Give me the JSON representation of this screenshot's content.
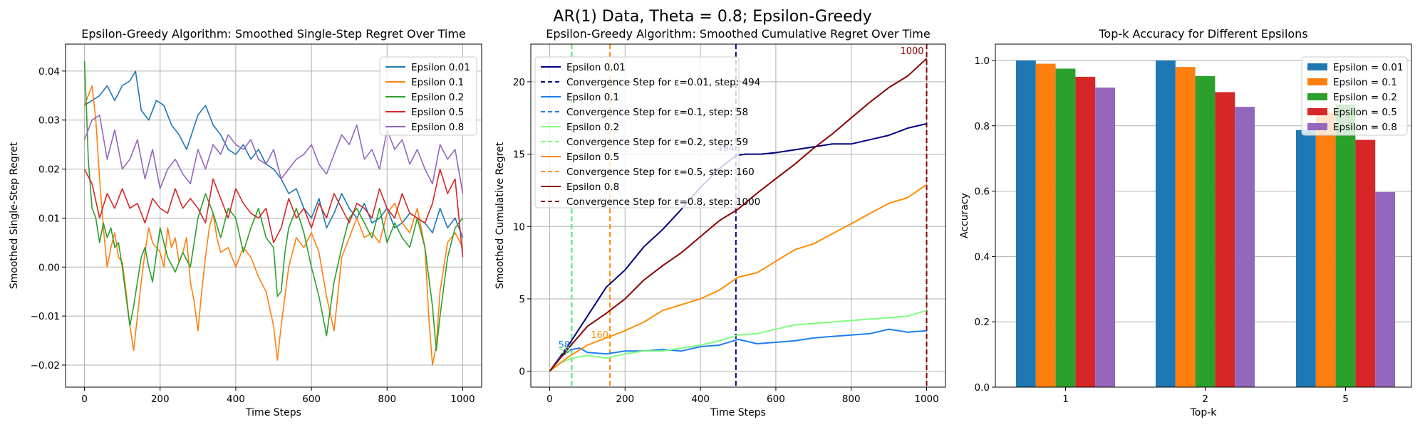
{
  "suptitle": "AR(1) Data, Theta = 0.8; Epsilon-Greedy",
  "chart_data": [
    {
      "type": "line",
      "title": "Epsilon-Greedy Algorithm: Smoothed Single-Step Regret Over Time",
      "xlabel": "Time Steps",
      "ylabel": "Smoothed Single-Step Regret",
      "xlim": [
        -50,
        1050
      ],
      "ylim": [
        -0.0245,
        0.0455
      ],
      "xticks": [
        0,
        200,
        400,
        600,
        800,
        1000
      ],
      "xtick_labels": [
        "0",
        "200",
        "400",
        "600",
        "800",
        "1000"
      ],
      "yticks": [
        -0.02,
        -0.01,
        0.0,
        0.01,
        0.02,
        0.03,
        0.04
      ],
      "ytick_labels": [
        "−0.02",
        "−0.01",
        "0.00",
        "0.01",
        "0.02",
        "0.03",
        "0.04"
      ],
      "grid": true,
      "legend_position": "upper right",
      "series": [
        {
          "name": "Epsilon 0.01",
          "color": "#1f77b4",
          "x": [
            0,
            20,
            40,
            60,
            80,
            100,
            120,
            135,
            150,
            170,
            190,
            210,
            230,
            250,
            270,
            300,
            320,
            340,
            360,
            380,
            400,
            420,
            440,
            460,
            480,
            500,
            520,
            540,
            560,
            580,
            600,
            620,
            640,
            660,
            680,
            700,
            720,
            740,
            760,
            780,
            800,
            820,
            840,
            860,
            880,
            900,
            920,
            940,
            960,
            980,
            1000
          ],
          "y": [
            0.033,
            0.034,
            0.035,
            0.037,
            0.034,
            0.037,
            0.038,
            0.04,
            0.032,
            0.03,
            0.034,
            0.033,
            0.029,
            0.027,
            0.024,
            0.031,
            0.033,
            0.029,
            0.027,
            0.024,
            0.023,
            0.025,
            0.022,
            0.024,
            0.021,
            0.02,
            0.018,
            0.015,
            0.016,
            0.012,
            0.01,
            0.014,
            0.008,
            0.011,
            0.015,
            0.012,
            0.01,
            0.013,
            0.009,
            0.01,
            0.012,
            0.008,
            0.009,
            0.011,
            0.01,
            0.009,
            0.007,
            0.012,
            0.008,
            0.01,
            0.006
          ]
        },
        {
          "name": "Epsilon 0.1",
          "color": "#ff7f0e",
          "x": [
            0,
            10,
            20,
            30,
            40,
            50,
            60,
            70,
            80,
            90,
            100,
            110,
            120,
            130,
            140,
            150,
            160,
            170,
            180,
            200,
            210,
            220,
            230,
            240,
            250,
            260,
            270,
            280,
            290,
            300,
            310,
            320,
            330,
            340,
            350,
            360,
            380,
            400,
            420,
            440,
            460,
            480,
            500,
            510,
            520,
            530,
            540,
            560,
            580,
            600,
            620,
            640,
            660,
            680,
            700,
            720,
            740,
            760,
            780,
            800,
            820,
            840,
            860,
            880,
            900,
            910,
            920,
            930,
            940,
            960,
            980,
            1000
          ],
          "y": [
            0.033,
            0.035,
            0.037,
            0.03,
            0.018,
            0.008,
            0.0,
            0.004,
            0.007,
            0.002,
            0.001,
            -0.005,
            -0.012,
            -0.017,
            -0.01,
            -0.003,
            0.003,
            0.008,
            0.005,
            0.003,
            0.0,
            0.008,
            0.004,
            0.006,
            0.001,
            0.003,
            0.006,
            -0.003,
            -0.007,
            -0.013,
            -0.005,
            0.002,
            0.008,
            0.011,
            0.006,
            0.003,
            0.004,
            0.0,
            0.004,
            0.002,
            -0.002,
            -0.005,
            -0.012,
            -0.019,
            -0.012,
            -0.006,
            0.0,
            0.006,
            0.004,
            0.007,
            0.003,
            -0.006,
            -0.013,
            0.002,
            0.006,
            0.01,
            0.006,
            0.007,
            0.005,
            0.011,
            0.013,
            0.009,
            0.007,
            0.012,
            0.004,
            -0.01,
            -0.02,
            -0.016,
            -0.005,
            0.005,
            0.007,
            0.004
          ]
        },
        {
          "name": "Epsilon 0.2",
          "color": "#2ca02c",
          "x": [
            0,
            5,
            10,
            20,
            30,
            40,
            50,
            60,
            70,
            80,
            90,
            100,
            110,
            120,
            130,
            140,
            150,
            160,
            170,
            180,
            200,
            220,
            240,
            260,
            280,
            300,
            320,
            340,
            360,
            380,
            400,
            420,
            440,
            460,
            480,
            500,
            510,
            520,
            530,
            540,
            560,
            580,
            600,
            620,
            640,
            660,
            680,
            700,
            720,
            740,
            760,
            780,
            800,
            820,
            840,
            860,
            880,
            900,
            920,
            930,
            940,
            960,
            980,
            1000
          ],
          "y": [
            0.042,
            0.033,
            0.022,
            0.012,
            0.01,
            0.005,
            0.009,
            0.006,
            0.008,
            0.004,
            0.005,
            0.0,
            -0.006,
            -0.012,
            -0.008,
            -0.003,
            0.002,
            0.004,
            0.0,
            -0.003,
            0.008,
            0.002,
            -0.001,
            0.003,
            0.0,
            0.01,
            0.015,
            0.011,
            0.006,
            0.012,
            0.01,
            0.003,
            0.008,
            0.012,
            0.006,
            0.004,
            -0.006,
            -0.005,
            0.003,
            0.008,
            0.012,
            0.007,
            0.0,
            -0.006,
            -0.014,
            -0.003,
            0.004,
            0.01,
            0.012,
            0.009,
            0.006,
            0.012,
            0.005,
            0.009,
            0.006,
            0.004,
            0.01,
            0.004,
            -0.008,
            -0.017,
            -0.01,
            0.002,
            0.008,
            0.01
          ]
        },
        {
          "name": "Epsilon 0.5",
          "color": "#d62728",
          "x": [
            0,
            20,
            40,
            60,
            80,
            100,
            120,
            140,
            160,
            180,
            200,
            220,
            240,
            260,
            280,
            300,
            320,
            340,
            360,
            380,
            400,
            420,
            440,
            460,
            480,
            500,
            520,
            540,
            560,
            580,
            600,
            620,
            640,
            660,
            680,
            700,
            720,
            740,
            760,
            780,
            800,
            820,
            840,
            860,
            880,
            900,
            920,
            940,
            960,
            980,
            1000
          ],
          "y": [
            0.02,
            0.017,
            0.01,
            0.015,
            0.012,
            0.016,
            0.012,
            0.013,
            0.009,
            0.014,
            0.012,
            0.011,
            0.016,
            0.012,
            0.014,
            0.012,
            0.009,
            0.018,
            0.014,
            0.01,
            0.016,
            0.013,
            0.011,
            0.01,
            0.012,
            0.005,
            0.008,
            0.014,
            0.01,
            0.012,
            0.008,
            0.013,
            0.01,
            0.015,
            0.012,
            0.009,
            0.013,
            0.012,
            0.01,
            0.016,
            0.012,
            0.01,
            0.015,
            0.011,
            0.01,
            0.009,
            0.013,
            0.02,
            0.015,
            0.018,
            0.002
          ]
        },
        {
          "name": "Epsilon 0.8",
          "color": "#9467bd",
          "x": [
            0,
            20,
            40,
            60,
            80,
            100,
            120,
            140,
            160,
            180,
            200,
            220,
            240,
            260,
            280,
            300,
            320,
            340,
            360,
            380,
            400,
            420,
            440,
            460,
            480,
            500,
            520,
            540,
            560,
            580,
            600,
            620,
            640,
            660,
            680,
            700,
            720,
            740,
            760,
            780,
            800,
            820,
            840,
            860,
            880,
            900,
            920,
            940,
            960,
            980,
            1000
          ],
          "y": [
            0.026,
            0.03,
            0.031,
            0.022,
            0.028,
            0.02,
            0.022,
            0.026,
            0.018,
            0.024,
            0.016,
            0.02,
            0.022,
            0.019,
            0.017,
            0.024,
            0.02,
            0.025,
            0.023,
            0.027,
            0.025,
            0.024,
            0.026,
            0.022,
            0.021,
            0.024,
            0.018,
            0.02,
            0.022,
            0.023,
            0.025,
            0.021,
            0.019,
            0.023,
            0.027,
            0.025,
            0.029,
            0.022,
            0.024,
            0.02,
            0.028,
            0.024,
            0.026,
            0.021,
            0.024,
            0.02,
            0.017,
            0.025,
            0.022,
            0.024,
            0.015
          ]
        }
      ]
    },
    {
      "type": "line",
      "title": "Epsilon-Greedy Algorithm: Smoothed Cumulative Regret Over Time",
      "xlabel": "Time Steps",
      "ylabel": "Smoothed Cumulative Regret",
      "xlim": [
        -50,
        1050
      ],
      "ylim": [
        -1.1,
        22.6
      ],
      "xticks": [
        0,
        200,
        400,
        600,
        800,
        1000
      ],
      "xtick_labels": [
        "0",
        "200",
        "400",
        "600",
        "800",
        "1000"
      ],
      "yticks": [
        0,
        5,
        10,
        15,
        20
      ],
      "ytick_labels": [
        "0",
        "5",
        "10",
        "15",
        "20"
      ],
      "grid": true,
      "legend_position": "upper left",
      "series": [
        {
          "name": "Epsilon 0.01",
          "color": "#000080",
          "conv_step": 494,
          "conv_label": "Convergence Step for ε=0.01, step: 494",
          "annotation": "494",
          "annotation_y": 15.2,
          "x": [
            0,
            50,
            100,
            150,
            200,
            250,
            300,
            350,
            400,
            450,
            494,
            520,
            560,
            600,
            650,
            700,
            750,
            800,
            850,
            900,
            950,
            1000
          ],
          "y": [
            0,
            1.8,
            3.8,
            5.8,
            7.0,
            8.6,
            9.8,
            11.2,
            12.7,
            14.0,
            14.9,
            15.0,
            15.0,
            15.1,
            15.3,
            15.5,
            15.7,
            15.7,
            16.0,
            16.3,
            16.8,
            17.1
          ]
        },
        {
          "name": "Epsilon 0.1",
          "color": "#1e7ff0",
          "conv_step": 58,
          "conv_label": "Convergence Step for ε=0.1, step: 58",
          "annotation": "58",
          "annotation_y": 1.6,
          "x": [
            0,
            30,
            58,
            80,
            100,
            150,
            200,
            250,
            300,
            350,
            400,
            450,
            500,
            550,
            600,
            650,
            700,
            750,
            800,
            850,
            900,
            950,
            1000
          ],
          "y": [
            0,
            1.0,
            1.5,
            1.6,
            1.3,
            1.2,
            1.4,
            1.4,
            1.5,
            1.4,
            1.7,
            1.8,
            2.2,
            1.9,
            2.0,
            2.1,
            2.3,
            2.4,
            2.5,
            2.6,
            2.9,
            2.7,
            2.8
          ]
        },
        {
          "name": "Epsilon 0.2",
          "color": "#7fff7f",
          "conv_step": 59,
          "conv_label": "Convergence Step for ε=0.2, step: 59",
          "annotation": "59",
          "annotation_y": 1.2,
          "x": [
            0,
            30,
            59,
            80,
            100,
            150,
            200,
            250,
            300,
            350,
            400,
            450,
            500,
            550,
            600,
            650,
            700,
            750,
            800,
            850,
            900,
            950,
            1000
          ],
          "y": [
            0,
            0.6,
            0.9,
            1.0,
            1.1,
            0.9,
            1.2,
            1.4,
            1.4,
            1.6,
            1.8,
            2.1,
            2.5,
            2.6,
            2.9,
            3.2,
            3.3,
            3.4,
            3.5,
            3.6,
            3.7,
            3.8,
            4.2
          ]
        },
        {
          "name": "Epsilon 0.5",
          "color": "#ff8c00",
          "conv_step": 160,
          "conv_label": "Convergence Step for ε=0.5, step: 160",
          "annotation": "160",
          "annotation_y": 2.3,
          "x": [
            0,
            50,
            100,
            160,
            200,
            250,
            300,
            350,
            400,
            450,
            500,
            550,
            600,
            650,
            700,
            750,
            800,
            850,
            900,
            950,
            1000
          ],
          "y": [
            0,
            1.0,
            1.8,
            2.4,
            2.8,
            3.4,
            4.2,
            4.6,
            5.0,
            5.6,
            6.5,
            6.8,
            7.6,
            8.4,
            8.8,
            9.5,
            10.2,
            10.9,
            11.6,
            12.0,
            12.9
          ]
        },
        {
          "name": "Epsilon 0.8",
          "color": "#8b0000",
          "conv_step": 1000,
          "conv_label": "Convergence Step for ε=0.8, step: 1000",
          "annotation": "1000",
          "annotation_y": 21.9,
          "x": [
            0,
            50,
            100,
            150,
            200,
            250,
            300,
            350,
            400,
            450,
            500,
            550,
            600,
            650,
            700,
            750,
            800,
            850,
            900,
            950,
            1000
          ],
          "y": [
            0,
            1.6,
            3.1,
            4.0,
            5.0,
            6.3,
            7.3,
            8.2,
            9.3,
            10.4,
            11.2,
            12.3,
            13.3,
            14.3,
            15.4,
            16.4,
            17.5,
            18.6,
            19.6,
            20.4,
            21.6
          ]
        }
      ]
    },
    {
      "type": "bar",
      "title": "Top-k Accuracy for Different Epsilons",
      "xlabel": "Top-k",
      "ylabel": "Accuracy",
      "categories": [
        "1",
        "2",
        "5"
      ],
      "ylim": [
        0,
        1.05
      ],
      "yticks": [
        0.0,
        0.2,
        0.4,
        0.6,
        0.8,
        1.0
      ],
      "ytick_labels": [
        "0.0",
        "0.2",
        "0.4",
        "0.6",
        "0.8",
        "1.0"
      ],
      "grid": true,
      "legend_position": "upper right",
      "series": [
        {
          "name": "Epsilon = 0.01",
          "color": "#1f77b4",
          "values": [
            1.0,
            1.0,
            0.787
          ]
        },
        {
          "name": "Epsilon = 0.1",
          "color": "#ff7f0e",
          "values": [
            0.99,
            0.98,
            0.84
          ]
        },
        {
          "name": "Epsilon = 0.2",
          "color": "#2ca02c",
          "values": [
            0.975,
            0.952,
            0.865
          ]
        },
        {
          "name": "Epsilon = 0.5",
          "color": "#d62728",
          "values": [
            0.95,
            0.903,
            0.757
          ]
        },
        {
          "name": "Epsilon = 0.8",
          "color": "#9467bd",
          "values": [
            0.917,
            0.858,
            0.597
          ]
        }
      ]
    }
  ]
}
